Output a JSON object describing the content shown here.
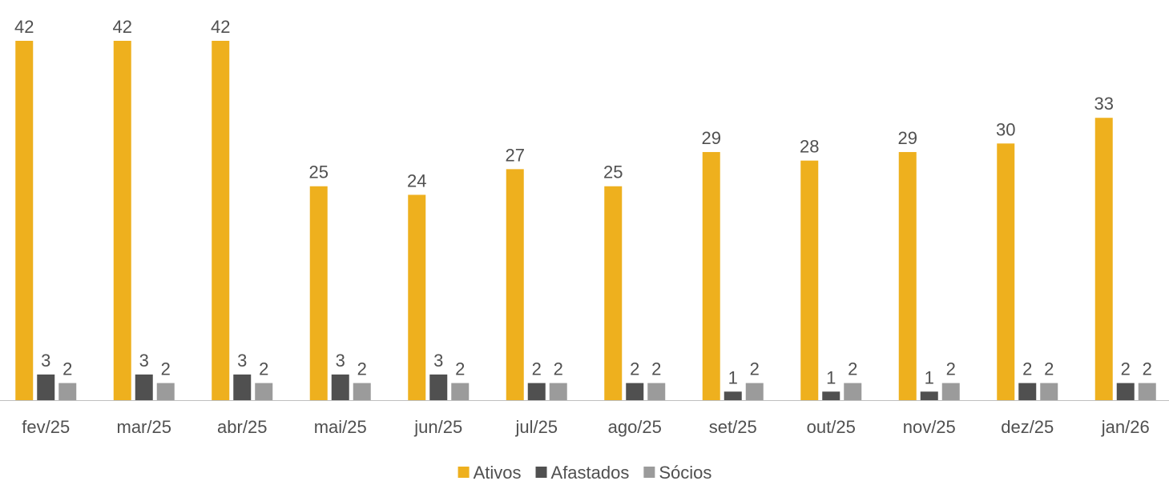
{
  "chart_data": {
    "type": "bar",
    "categories": [
      "fev/25",
      "mar/25",
      "abr/25",
      "mai/25",
      "jun/25",
      "jul/25",
      "ago/25",
      "set/25",
      "out/25",
      "nov/25",
      "dez/25",
      "jan/26"
    ],
    "series": [
      {
        "name": "Ativos",
        "color": "#EEB01E",
        "values": [
          42,
          42,
          42,
          25,
          24,
          27,
          25,
          29,
          28,
          29,
          30,
          33
        ]
      },
      {
        "name": "Afastados",
        "color": "#505050",
        "values": [
          3,
          3,
          3,
          3,
          3,
          2,
          2,
          1,
          1,
          1,
          2,
          2
        ]
      },
      {
        "name": "Sócios",
        "color": "#9B9B9B",
        "values": [
          2,
          2,
          2,
          2,
          2,
          2,
          2,
          2,
          2,
          2,
          2,
          2
        ]
      }
    ],
    "ylim": [
      0,
      42
    ],
    "legend": "bottom"
  }
}
